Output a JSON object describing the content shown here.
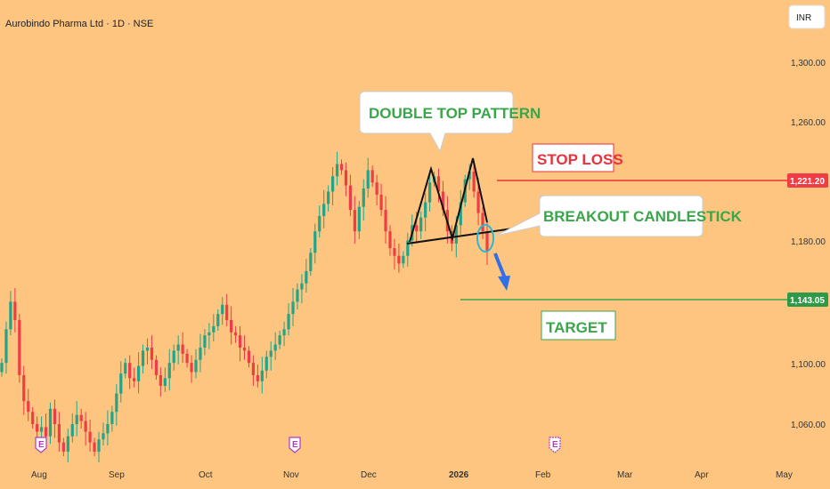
{
  "title": "Aurobindo Pharma Ltd · 1D · NSE",
  "currency": "INR",
  "colors": {
    "background": "#fdc57f",
    "up": "#22a48a",
    "down": "#ef3c45",
    "green_text": "#3aa64a",
    "red_text": "#e8323c",
    "arrow": "#2f6fe8",
    "circle": "#2ab8d6"
  },
  "y_axis": {
    "ticks": [
      "1,300.00",
      "1,260.00",
      "1,180.00",
      "1,100.00",
      "1,060.00"
    ],
    "range": [
      1045,
      1324
    ]
  },
  "x_axis": {
    "ticks": [
      "Aug",
      "Sep",
      "Oct",
      "Nov",
      "Dec",
      "2026",
      "Feb",
      "Mar",
      "Apr",
      "May"
    ]
  },
  "price_labels": {
    "stop": "1,221.20",
    "target": "1,143.05"
  },
  "annotations": {
    "pattern": "DOUBLE TOP PATTERN",
    "stop_loss": "STOP LOSS",
    "breakout": "BREAKOUT CANDLESTICK",
    "target": "TARGET"
  },
  "earnings_marker": "E",
  "chart_data": {
    "type": "candlestick",
    "title": "Aurobindo Pharma Ltd · 1D · NSE",
    "ylim": [
      1045,
      1324
    ],
    "levels": {
      "stop_loss": 1221.2,
      "target": 1143.05
    },
    "pattern": "double top",
    "approx_close_series": [
      1110,
      1132,
      1150,
      1138,
      1102,
      1085,
      1078,
      1070,
      1065,
      1068,
      1062,
      1080,
      1070,
      1058,
      1052,
      1062,
      1070,
      1076,
      1072,
      1065,
      1058,
      1052,
      1060,
      1064,
      1070,
      1078,
      1090,
      1103,
      1110,
      1100,
      1098,
      1108,
      1118,
      1120,
      1112,
      1102,
      1095,
      1100,
      1110,
      1118,
      1122,
      1116,
      1110,
      1104,
      1112,
      1120,
      1128,
      1130,
      1134,
      1142,
      1148,
      1138,
      1130,
      1128,
      1120,
      1118,
      1110,
      1102,
      1098,
      1105,
      1114,
      1118,
      1122,
      1128,
      1132,
      1142,
      1150,
      1158,
      1162,
      1170,
      1182,
      1196,
      1206,
      1214,
      1222,
      1232,
      1240,
      1236,
      1226,
      1210,
      1196,
      1212,
      1224,
      1236,
      1228,
      1220,
      1210,
      1196,
      1185,
      1180,
      1175,
      1180,
      1190,
      1200,
      1196,
      1205,
      1215,
      1228,
      1232,
      1222,
      1210,
      1196,
      1188,
      1200,
      1215,
      1230,
      1235,
      1222,
      1208,
      1196,
      1183
    ]
  }
}
